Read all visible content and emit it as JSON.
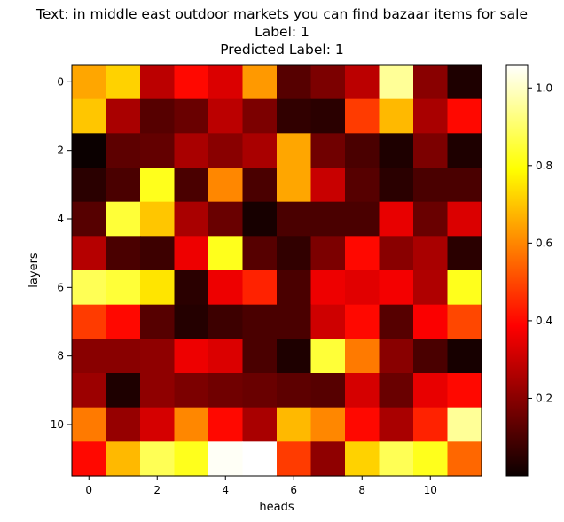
{
  "chart_data": {
    "type": "heatmap",
    "title_lines": [
      "Text: in middle east outdoor markets you can find bazaar items for sale",
      "Label: 1",
      "Predicted Label: 1"
    ],
    "xlabel": "heads",
    "ylabel": "layers",
    "x_ticks": [
      0,
      2,
      4,
      6,
      8,
      10
    ],
    "y_ticks": [
      0,
      2,
      4,
      6,
      8,
      10
    ],
    "colormap": "hot",
    "colorbar": {
      "min": 0.0,
      "max": 1.06,
      "ticks": [
        0.2,
        0.4,
        0.6,
        0.8,
        1.0
      ],
      "tick_labels": [
        "0.2",
        "0.4",
        "0.6",
        "0.8",
        "1.0"
      ]
    },
    "values": [
      [
        0.65,
        0.72,
        0.28,
        0.4,
        0.33,
        0.63,
        0.12,
        0.18,
        0.28,
        0.95,
        0.2,
        0.03
      ],
      [
        0.7,
        0.25,
        0.12,
        0.15,
        0.28,
        0.18,
        0.06,
        0.05,
        0.48,
        0.68,
        0.25,
        0.4
      ],
      [
        0.0,
        0.13,
        0.14,
        0.25,
        0.2,
        0.25,
        0.65,
        0.16,
        0.1,
        0.03,
        0.18,
        0.03
      ],
      [
        0.05,
        0.1,
        0.82,
        0.1,
        0.6,
        0.1,
        0.65,
        0.3,
        0.12,
        0.05,
        0.1,
        0.1
      ],
      [
        0.12,
        0.85,
        0.7,
        0.25,
        0.15,
        0.02,
        0.1,
        0.1,
        0.1,
        0.35,
        0.15,
        0.33
      ],
      [
        0.27,
        0.1,
        0.08,
        0.36,
        0.82,
        0.12,
        0.06,
        0.18,
        0.4,
        0.2,
        0.25,
        0.05
      ],
      [
        0.88,
        0.85,
        0.75,
        0.05,
        0.36,
        0.44,
        0.1,
        0.36,
        0.34,
        0.37,
        0.26,
        0.82
      ],
      [
        0.48,
        0.4,
        0.12,
        0.04,
        0.08,
        0.1,
        0.1,
        0.31,
        0.4,
        0.12,
        0.38,
        0.5
      ],
      [
        0.2,
        0.2,
        0.21,
        0.36,
        0.33,
        0.1,
        0.03,
        0.85,
        0.58,
        0.2,
        0.1,
        0.02
      ],
      [
        0.23,
        0.03,
        0.21,
        0.18,
        0.16,
        0.15,
        0.13,
        0.12,
        0.32,
        0.15,
        0.35,
        0.4
      ],
      [
        0.58,
        0.22,
        0.32,
        0.6,
        0.4,
        0.25,
        0.68,
        0.6,
        0.4,
        0.25,
        0.44,
        0.95
      ],
      [
        0.4,
        0.68,
        0.88,
        0.82,
        1.05,
        1.06,
        0.48,
        0.21,
        0.72,
        0.88,
        0.82,
        0.55
      ]
    ]
  }
}
